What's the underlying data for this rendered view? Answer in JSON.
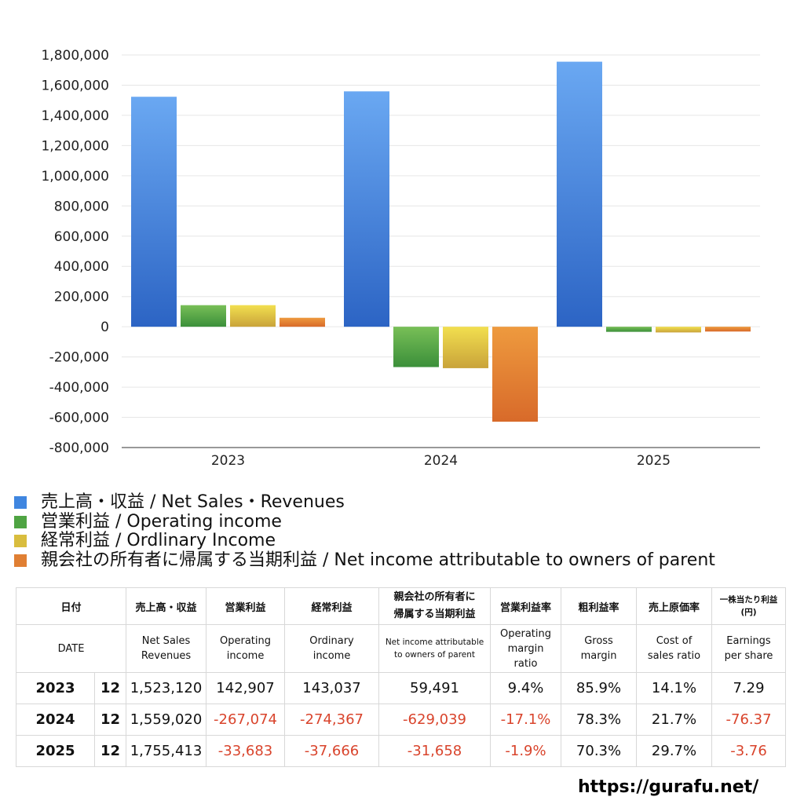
{
  "chart_data": {
    "type": "bar",
    "categories": [
      "2023",
      "2024",
      "2025"
    ],
    "ylim": [
      -800000,
      1800000
    ],
    "yticks": [
      "1,800,000",
      "1,600,000",
      "1,400,000",
      "1,200,000",
      "1,000,000",
      "800,000",
      "600,000",
      "400,000",
      "200,000",
      "0",
      "-200,000",
      "-400,000",
      "-600,000",
      "-800,000"
    ],
    "ytick_values": [
      1800000,
      1600000,
      1400000,
      1200000,
      1000000,
      800000,
      600000,
      400000,
      200000,
      0,
      -200000,
      -400000,
      -600000,
      -800000
    ],
    "grid": true,
    "series": [
      {
        "name": "売上高・収益 / Net Sales・Revenues",
        "values": [
          1523120,
          1559020,
          1755413
        ],
        "color_top": "#6aa8f2",
        "color_bottom": "#2c64c4"
      },
      {
        "name": "営業利益 / Operating income",
        "values": [
          142907,
          -267074,
          -33683
        ],
        "color_top": "#78bf57",
        "color_bottom": "#3b8f3a"
      },
      {
        "name": "経常利益 / Ordlinary Income",
        "values": [
          143037,
          -274367,
          -37666
        ],
        "color_top": "#f2df4f",
        "color_bottom": "#c9a33a"
      },
      {
        "name": "親会社の所有者に帰属する当期利益 / Net income attributable to owners of parent",
        "values": [
          59491,
          -629039,
          -31658
        ],
        "color_top": "#ee9a3e",
        "color_bottom": "#d86a2a"
      }
    ]
  },
  "legend": [
    {
      "label": "売上高・収益 / Net Sales・Revenues",
      "color": "#3f86e0"
    },
    {
      "label": "営業利益 / Operating income",
      "color": "#4fa443"
    },
    {
      "label": "経常利益 / Ordlinary Income",
      "color": "#d9bd3e"
    },
    {
      "label": "親会社の所有者に帰属する当期利益 / Net income attributable to owners of parent",
      "color": "#e07f33"
    }
  ],
  "table": {
    "header_jp": {
      "date": "日付",
      "sales": "売上高・収益",
      "op": "営業利益",
      "ord": "経常利益",
      "net_l1": "親会社の所有者に",
      "net_l2": "帰属する当期利益",
      "op_margin": "営業利益率",
      "gross": "粗利益率",
      "cost": "売上原価率",
      "eps_l1": "一株当たり利益",
      "eps_l2": "(円)"
    },
    "header_en": {
      "date": "DATE",
      "sales_l1": "Net Sales",
      "sales_l2": "Revenues",
      "op_l1": "Operating",
      "op_l2": "income",
      "ord_l1": "Ordinary",
      "ord_l2": "income",
      "net_l1": "Net income attributable",
      "net_l2": "to owners of parent",
      "opm_l1": "Operating",
      "opm_l2": "margin",
      "opm_l3": "ratio",
      "gross_l1": "Gross",
      "gross_l2": "margin",
      "cost_l1": "Cost of",
      "cost_l2": "sales ratio",
      "eps_l1": "Earnings",
      "eps_l2": "per share"
    },
    "rows": [
      {
        "year": "2023",
        "month": "12",
        "sales": "1,523,120",
        "op": "142,907",
        "ord": "143,037",
        "net": "59,491",
        "opm": "9.4%",
        "gross": "85.9%",
        "cost": "14.1%",
        "eps": "7.29"
      },
      {
        "year": "2024",
        "month": "12",
        "sales": "1,559,020",
        "op": "-267,074",
        "ord": "-274,367",
        "net": "-629,039",
        "opm": "-17.1%",
        "gross": "78.3%",
        "cost": "21.7%",
        "eps": "-76.37"
      },
      {
        "year": "2025",
        "month": "12",
        "sales": "1,755,413",
        "op": "-33,683",
        "ord": "-37,666",
        "net": "-31,658",
        "opm": "-1.9%",
        "gross": "70.3%",
        "cost": "29.7%",
        "eps": "-3.76"
      }
    ],
    "negative_color": "#d9442c"
  },
  "site_url": "https://gurafu.net/"
}
